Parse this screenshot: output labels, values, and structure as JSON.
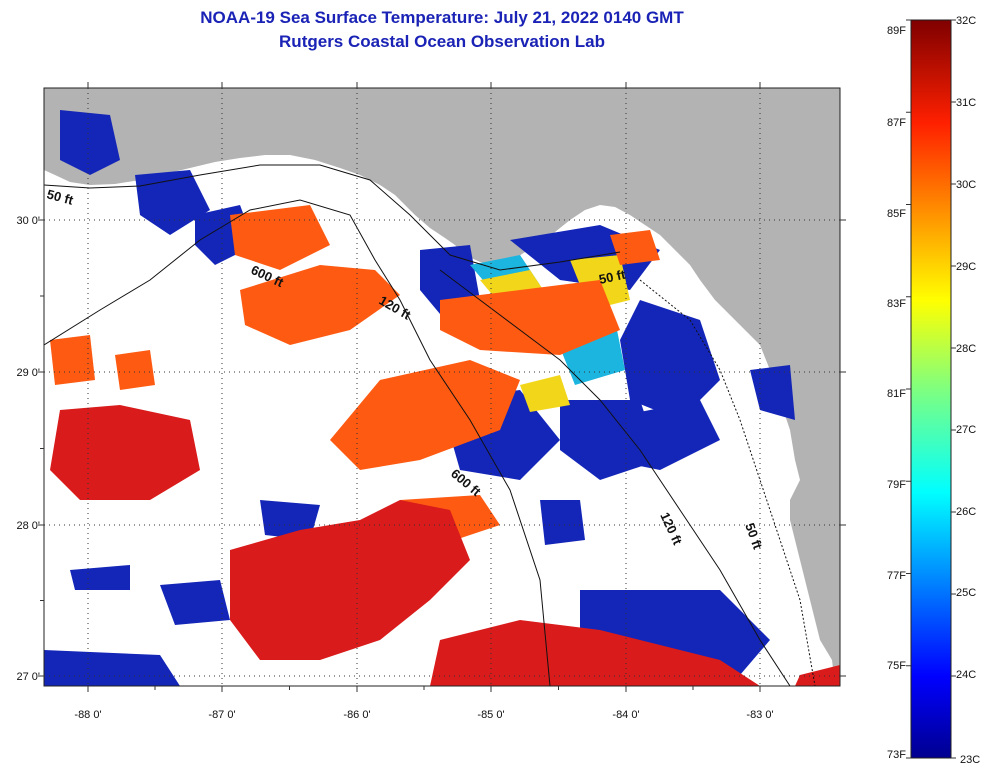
{
  "title": {
    "line1": "NOAA-19 Sea Surface Temperature:  July 21, 2022 0140 GMT",
    "line2": "Rutgers Coastal Ocean Observation Lab"
  },
  "map": {
    "lon_ticks": [
      "-88 0'",
      "-87 0'",
      "-86 0'",
      "-85 0'",
      "-84 0'",
      "-83 0'"
    ],
    "lat_ticks": [
      "30 0'",
      "29 0'",
      "28 0'",
      "27 0'"
    ],
    "bathymetry_labels": [
      "50 ft",
      "600 ft",
      "120 ft",
      "50 ft",
      "600 ft",
      "120 ft",
      "50 ft"
    ],
    "colors": {
      "land": "#b3b3b3",
      "cloud": "#ffffff",
      "warm": "#ff5a12",
      "hot": "#d91b1b",
      "cool": "#1426b8"
    }
  },
  "colorbar": {
    "fahrenheit": [
      "89F",
      "87F",
      "85F",
      "83F",
      "81F",
      "79F",
      "77F",
      "75F",
      "73F"
    ],
    "celsius": [
      "32C",
      "31C",
      "30C",
      "29C",
      "28C",
      "27C",
      "26C",
      "25C",
      "24C",
      "23C"
    ],
    "range_c": [
      23,
      32
    ],
    "range_f": [
      73,
      89
    ]
  }
}
